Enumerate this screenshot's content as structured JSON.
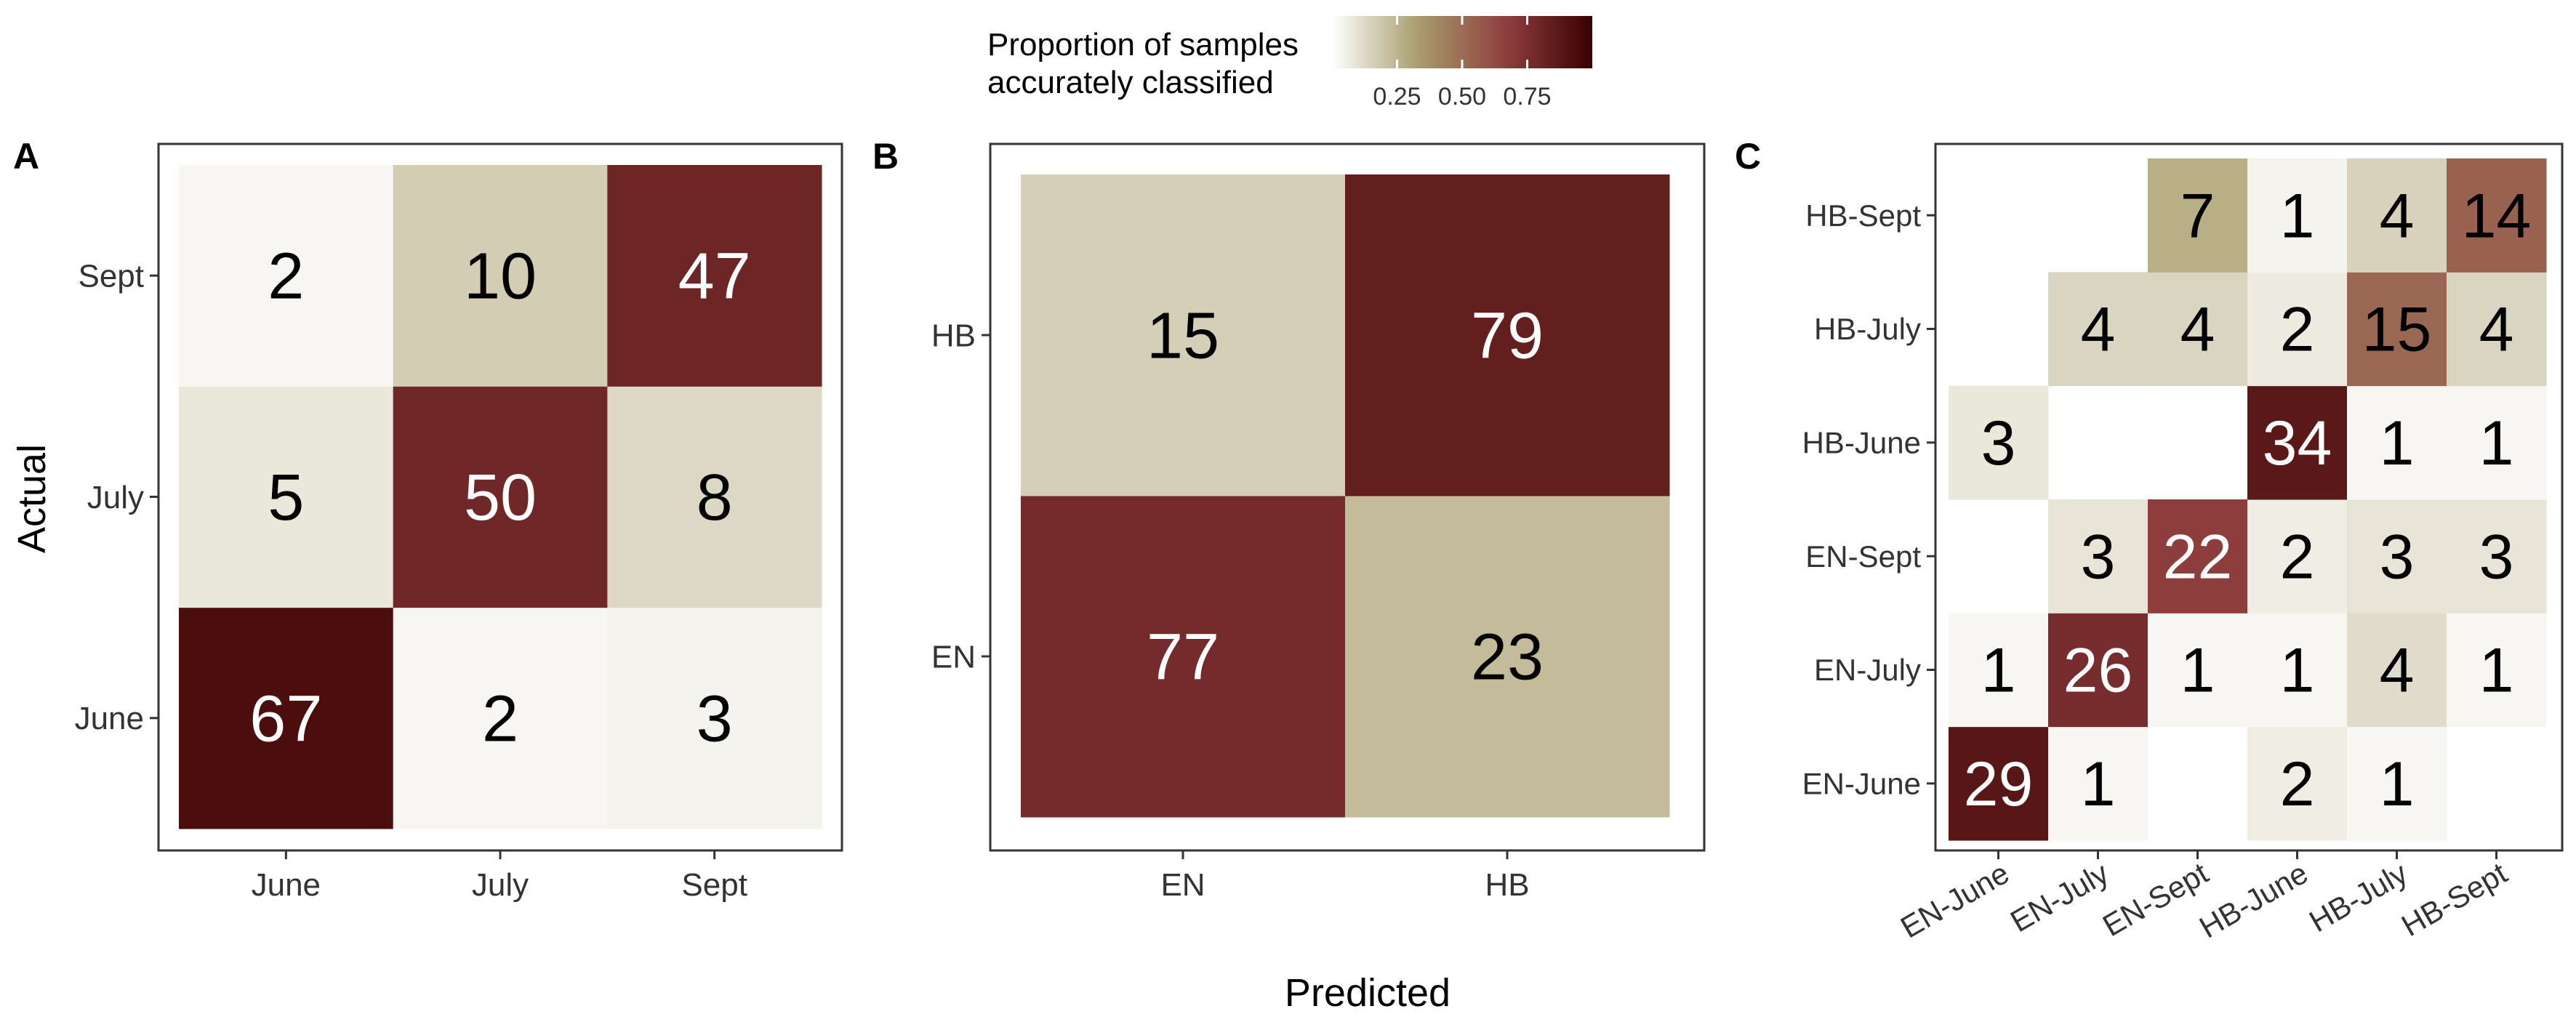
{
  "legend": {
    "title_line1": "Proportion of samples",
    "title_line2": "accurately classified",
    "ticks": [
      "0.25",
      "0.50",
      "0.75"
    ],
    "tick_values": [
      0.25,
      0.5,
      0.75
    ],
    "colors": [
      "#ffffff",
      "#a89c6b",
      "#8f3e3e",
      "#3a0000"
    ]
  },
  "axis_titles": {
    "x": "Predicted",
    "y": "Actual"
  },
  "chart_data": [
    {
      "type": "heatmap",
      "panel": "A",
      "x_categories": [
        "June",
        "July",
        "Sept"
      ],
      "y_categories": [
        "June",
        "July",
        "Sept"
      ],
      "cells": [
        {
          "actual": "June",
          "predicted": "June",
          "count": 67,
          "proportion": 0.93
        },
        {
          "actual": "June",
          "predicted": "July",
          "count": 2,
          "proportion": 0.03
        },
        {
          "actual": "June",
          "predicted": "Sept",
          "count": 3,
          "proportion": 0.04
        },
        {
          "actual": "July",
          "predicted": "June",
          "count": 5,
          "proportion": 0.08
        },
        {
          "actual": "July",
          "predicted": "July",
          "count": 50,
          "proportion": 0.79
        },
        {
          "actual": "July",
          "predicted": "Sept",
          "count": 8,
          "proportion": 0.13
        },
        {
          "actual": "Sept",
          "predicted": "June",
          "count": 2,
          "proportion": 0.03
        },
        {
          "actual": "Sept",
          "predicted": "July",
          "count": 10,
          "proportion": 0.17
        },
        {
          "actual": "Sept",
          "predicted": "Sept",
          "count": 47,
          "proportion": 0.8
        }
      ]
    },
    {
      "type": "heatmap",
      "panel": "B",
      "x_categories": [
        "EN",
        "HB"
      ],
      "y_categories": [
        "EN",
        "HB"
      ],
      "cells": [
        {
          "actual": "EN",
          "predicted": "EN",
          "count": 77,
          "proportion": 0.77
        },
        {
          "actual": "EN",
          "predicted": "HB",
          "count": 23,
          "proportion": 0.23
        },
        {
          "actual": "HB",
          "predicted": "EN",
          "count": 15,
          "proportion": 0.16
        },
        {
          "actual": "HB",
          "predicted": "HB",
          "count": 79,
          "proportion": 0.84
        }
      ]
    },
    {
      "type": "heatmap",
      "panel": "C",
      "x_categories": [
        "EN-June",
        "EN-July",
        "EN-Sept",
        "HB-June",
        "HB-July",
        "HB-Sept"
      ],
      "y_categories": [
        "EN-June",
        "EN-July",
        "EN-Sept",
        "HB-June",
        "HB-July",
        "HB-Sept"
      ],
      "cells": [
        {
          "actual": "EN-June",
          "predicted": "EN-June",
          "count": 29,
          "proportion": 0.88
        },
        {
          "actual": "EN-June",
          "predicted": "EN-July",
          "count": 1,
          "proportion": 0.03
        },
        {
          "actual": "EN-June",
          "predicted": "HB-June",
          "count": 2,
          "proportion": 0.06
        },
        {
          "actual": "EN-June",
          "predicted": "HB-July",
          "count": 1,
          "proportion": 0.03
        },
        {
          "actual": "EN-July",
          "predicted": "EN-June",
          "count": 1,
          "proportion": 0.03
        },
        {
          "actual": "EN-July",
          "predicted": "EN-July",
          "count": 26,
          "proportion": 0.76
        },
        {
          "actual": "EN-July",
          "predicted": "EN-Sept",
          "count": 1,
          "proportion": 0.03
        },
        {
          "actual": "EN-July",
          "predicted": "HB-June",
          "count": 1,
          "proportion": 0.03
        },
        {
          "actual": "EN-July",
          "predicted": "HB-July",
          "count": 4,
          "proportion": 0.12
        },
        {
          "actual": "EN-July",
          "predicted": "HB-Sept",
          "count": 1,
          "proportion": 0.03
        },
        {
          "actual": "EN-Sept",
          "predicted": "EN-July",
          "count": 3,
          "proportion": 0.09
        },
        {
          "actual": "EN-Sept",
          "predicted": "EN-Sept",
          "count": 22,
          "proportion": 0.67
        },
        {
          "actual": "EN-Sept",
          "predicted": "HB-June",
          "count": 2,
          "proportion": 0.06
        },
        {
          "actual": "EN-Sept",
          "predicted": "HB-July",
          "count": 3,
          "proportion": 0.09
        },
        {
          "actual": "EN-Sept",
          "predicted": "HB-Sept",
          "count": 3,
          "proportion": 0.09
        },
        {
          "actual": "HB-June",
          "predicted": "EN-June",
          "count": 3,
          "proportion": 0.08
        },
        {
          "actual": "HB-June",
          "predicted": "HB-June",
          "count": 34,
          "proportion": 0.87
        },
        {
          "actual": "HB-June",
          "predicted": "HB-July",
          "count": 1,
          "proportion": 0.03
        },
        {
          "actual": "HB-June",
          "predicted": "HB-Sept",
          "count": 1,
          "proportion": 0.03
        },
        {
          "actual": "HB-July",
          "predicted": "EN-July",
          "count": 4,
          "proportion": 0.14
        },
        {
          "actual": "HB-July",
          "predicted": "EN-Sept",
          "count": 4,
          "proportion": 0.14
        },
        {
          "actual": "HB-July",
          "predicted": "HB-June",
          "count": 2,
          "proportion": 0.07
        },
        {
          "actual": "HB-July",
          "predicted": "HB-July",
          "count": 15,
          "proportion": 0.52
        },
        {
          "actual": "HB-July",
          "predicted": "HB-Sept",
          "count": 4,
          "proportion": 0.14
        },
        {
          "actual": "HB-Sept",
          "predicted": "EN-Sept",
          "count": 7,
          "proportion": 0.27
        },
        {
          "actual": "HB-Sept",
          "predicted": "HB-June",
          "count": 1,
          "proportion": 0.04
        },
        {
          "actual": "HB-Sept",
          "predicted": "HB-July",
          "count": 4,
          "proportion": 0.15
        },
        {
          "actual": "HB-Sept",
          "predicted": "HB-Sept",
          "count": 14,
          "proportion": 0.54
        }
      ]
    }
  ]
}
